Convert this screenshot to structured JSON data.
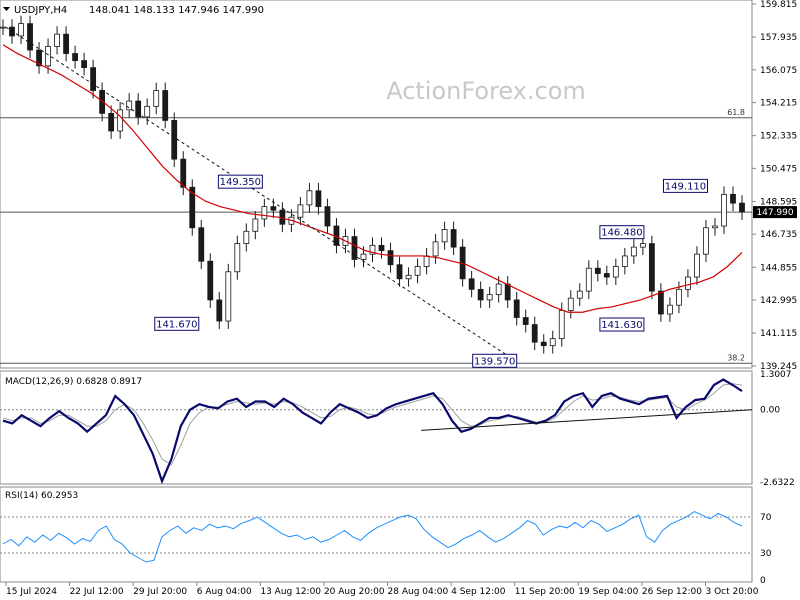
{
  "header": {
    "symbol": "USDJPY,H4",
    "ohlc": "148.041 148.133 147.946 147.990"
  },
  "watermark": "ActionForex.com",
  "chart_data": [
    {
      "type": "candlestick",
      "name": "price",
      "ylim": [
        139.245,
        159.815
      ],
      "y_ticks": [
        "159.815",
        "157.935",
        "156.075",
        "154.215",
        "152.335",
        "150.475",
        "148.595",
        "146.735",
        "144.855",
        "142.995",
        "141.115",
        "139.245"
      ],
      "current_price": "147.990",
      "close_series": [
        158.5,
        158.0,
        158.7,
        157.2,
        156.3,
        157.4,
        158.1,
        157.0,
        156.6,
        156.2,
        154.9,
        153.6,
        152.6,
        153.8,
        154.3,
        153.4,
        154.0,
        154.9,
        153.2,
        151.0,
        149.4,
        147.1,
        145.2,
        143.0,
        141.8,
        144.6,
        146.2,
        146.9,
        147.6,
        148.3,
        148.1,
        147.3,
        147.7,
        148.4,
        149.2,
        148.3,
        147.2,
        146.1,
        146.6,
        145.3,
        145.6,
        146.1,
        145.8,
        145.0,
        144.2,
        144.4,
        144.9,
        145.5,
        146.3,
        147.0,
        146.0,
        144.2,
        143.6,
        143.0,
        143.3,
        143.9,
        143.0,
        142.0,
        141.6,
        140.6,
        140.4,
        140.8,
        142.4,
        143.1,
        143.5,
        144.8,
        144.5,
        144.3,
        144.9,
        145.5,
        146.0,
        146.2,
        143.5,
        142.2,
        142.7,
        143.6,
        144.3,
        145.6,
        147.1,
        147.2,
        149.0,
        148.5,
        148.0
      ],
      "moving_average": [
        157.5,
        157.0,
        156.6,
        156.2,
        155.8,
        155.3,
        154.8,
        154.2,
        153.5,
        152.6,
        151.6,
        150.6,
        149.8,
        149.1,
        148.6,
        148.3,
        148.1,
        147.9,
        147.8,
        147.7,
        147.5,
        147.2,
        146.9,
        146.6,
        146.2,
        145.8,
        145.6,
        145.5,
        145.5,
        145.5,
        145.4,
        145.2,
        145.0,
        144.6,
        144.2,
        143.8,
        143.4,
        143.0,
        142.6,
        142.3,
        142.3,
        142.5,
        142.6,
        142.8,
        143.0,
        143.3,
        143.6,
        143.8,
        144.0,
        144.3,
        144.9,
        145.7
      ],
      "horizontal_levels": [
        {
          "price": 153.35,
          "label": "61.8"
        },
        {
          "price": 139.4,
          "label": "38.2"
        },
        {
          "price": 147.99
        }
      ],
      "annotations": [
        {
          "label": "149.350",
          "price": 149.35,
          "x": "13 Aug 12:00"
        },
        {
          "label": "141.670",
          "price": 141.67,
          "x": "6 Aug 04:00"
        },
        {
          "label": "139.570",
          "price": 139.57,
          "x": "11 Sep 20:00"
        },
        {
          "label": "146.480",
          "price": 146.48,
          "x": "26 Sep 12:00"
        },
        {
          "label": "141.630",
          "price": 141.63,
          "x": "26 Sep 12:00"
        },
        {
          "label": "149.110",
          "price": 149.11,
          "x": "3 Oct 20:00"
        }
      ],
      "trendline": {
        "from_price": 158.5,
        "to_price": 139.57,
        "from_x": "15 Jul 2024",
        "to_x": "11 Sep 20:00"
      }
    },
    {
      "type": "line",
      "name": "MACD",
      "label": "MACD(12,26,9)",
      "main_value": "0.6828",
      "signal_value": "0.8917",
      "ylim": [
        -2.6322,
        1.3007
      ],
      "y_ticks": [
        "1.3007",
        "0.00",
        "-2.6322"
      ],
      "main_series": [
        -0.4,
        -0.5,
        -0.2,
        -0.4,
        -0.6,
        -0.3,
        -0.05,
        -0.3,
        -0.5,
        -0.8,
        -0.5,
        -0.2,
        0.5,
        0.2,
        -0.2,
        -0.9,
        -1.6,
        -2.6,
        -1.8,
        -0.6,
        0.0,
        0.2,
        0.1,
        0.05,
        0.3,
        0.4,
        0.1,
        0.3,
        0.3,
        0.1,
        0.4,
        0.2,
        -0.1,
        -0.3,
        -0.5,
        -0.1,
        0.2,
        0.05,
        -0.1,
        -0.3,
        -0.2,
        0.05,
        0.2,
        0.3,
        0.4,
        0.5,
        0.6,
        0.2,
        -0.4,
        -0.8,
        -0.7,
        -0.5,
        -0.3,
        -0.3,
        -0.2,
        -0.3,
        -0.4,
        -0.5,
        -0.4,
        -0.2,
        0.3,
        0.5,
        0.6,
        0.1,
        0.5,
        0.6,
        0.4,
        0.3,
        0.2,
        0.4,
        0.45,
        0.5,
        -0.3,
        0.1,
        0.35,
        0.4,
        0.9,
        1.1,
        0.9,
        0.68
      ],
      "signal_series": [
        -0.3,
        -0.4,
        -0.3,
        -0.3,
        -0.5,
        -0.4,
        -0.2,
        -0.2,
        -0.4,
        -0.6,
        -0.6,
        -0.4,
        0.0,
        0.2,
        0.0,
        -0.5,
        -1.1,
        -1.8,
        -2.0,
        -1.3,
        -0.5,
        -0.1,
        0.1,
        0.1,
        0.2,
        0.3,
        0.25,
        0.2,
        0.25,
        0.2,
        0.3,
        0.25,
        0.1,
        -0.1,
        -0.3,
        -0.25,
        0.0,
        0.1,
        0.0,
        -0.15,
        -0.2,
        -0.05,
        0.1,
        0.2,
        0.3,
        0.4,
        0.5,
        0.4,
        0.0,
        -0.4,
        -0.6,
        -0.55,
        -0.4,
        -0.35,
        -0.25,
        -0.25,
        -0.35,
        -0.45,
        -0.45,
        -0.3,
        0.0,
        0.3,
        0.5,
        0.35,
        0.4,
        0.5,
        0.45,
        0.35,
        0.3,
        0.35,
        0.4,
        0.45,
        0.1,
        0.0,
        0.2,
        0.35,
        0.6,
        0.9,
        0.95,
        0.89
      ],
      "trendline": {
        "from_value": -0.75,
        "to_value": 0.0,
        "from_x": "4 Sep 12:00"
      }
    },
    {
      "type": "line",
      "name": "RSI",
      "label": "RSI(14)",
      "value": "60.2953",
      "ylim": [
        0,
        100
      ],
      "y_ticks": [
        "100",
        "70",
        "30",
        "0"
      ],
      "levels": [
        70,
        30
      ],
      "series": [
        40,
        45,
        38,
        48,
        42,
        50,
        44,
        52,
        47,
        40,
        46,
        43,
        55,
        60,
        45,
        40,
        30,
        25,
        20,
        22,
        48,
        55,
        60,
        52,
        58,
        55,
        62,
        58,
        60,
        57,
        63,
        66,
        70,
        64,
        58,
        52,
        48,
        50,
        45,
        48,
        42,
        45,
        50,
        55,
        48,
        44,
        52,
        58,
        62,
        66,
        70,
        72,
        68,
        56,
        48,
        42,
        36,
        40,
        46,
        50,
        55,
        48,
        42,
        46,
        52,
        58,
        66,
        62,
        50,
        56,
        60,
        58,
        64,
        58,
        66,
        62,
        54,
        58,
        62,
        68,
        72,
        48,
        42,
        55,
        62,
        66,
        70,
        76,
        72,
        68,
        74,
        70,
        64,
        60
      ],
      "current_value": 60.2953
    }
  ],
  "x_axis": {
    "labels": [
      "15 Jul 2024",
      "22 Jul 12:00",
      "29 Jul 20:00",
      "6 Aug 04:00",
      "13 Aug 12:00",
      "20 Aug 20:00",
      "28 Aug 04:00",
      "4 Sep 12:00",
      "11 Sep 20:00",
      "19 Sep 04:00",
      "26 Sep 12:00",
      "3 Oct 20:00"
    ]
  },
  "colors": {
    "candle": "#1a1a1a",
    "moving_average": "#d40000",
    "macd_main": "#0a0a6e",
    "macd_signal": "#a0a0a0",
    "rsi": "#1e90ff",
    "label_box": "#0a0a6e"
  }
}
